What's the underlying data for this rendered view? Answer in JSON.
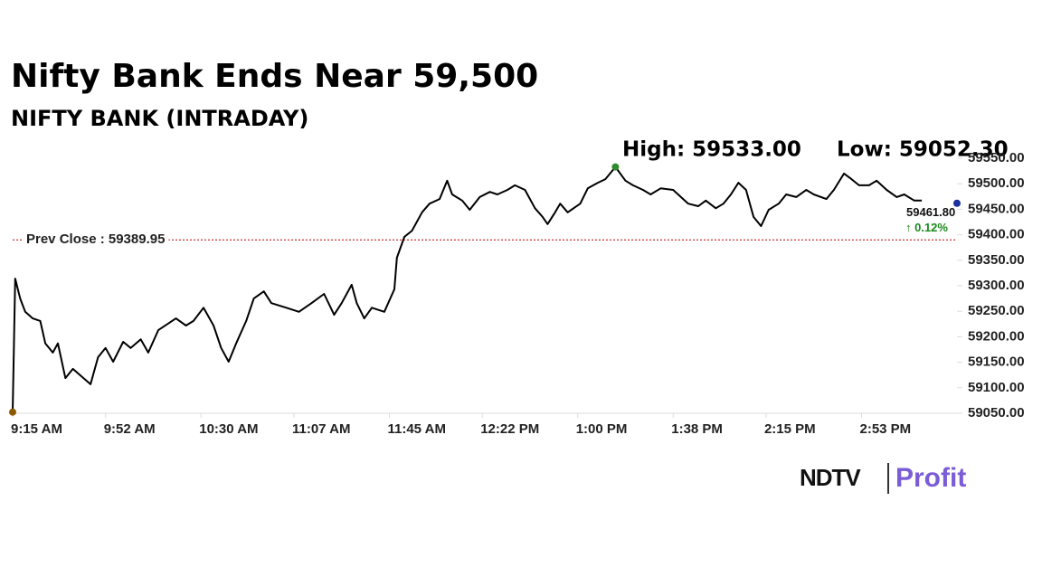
{
  "chart_data": {
    "type": "line",
    "title": "Nifty Bank Ends Near 59,500",
    "subtitle": "NIFTY BANK (INTRADAY)",
    "x": [
      555,
      556,
      558,
      560,
      563,
      566,
      568,
      571,
      573,
      576,
      579,
      582,
      586,
      589,
      592,
      595,
      599,
      602,
      606,
      609,
      613,
      617,
      620,
      624,
      627,
      631,
      635,
      638,
      641,
      644,
      648,
      651,
      655,
      658,
      664,
      669,
      674,
      679,
      683,
      686,
      690,
      692,
      695,
      698,
      703,
      707,
      708,
      711,
      714,
      718,
      721,
      725,
      728,
      730,
      734,
      737,
      741,
      745,
      748,
      752,
      755,
      759,
      763,
      766,
      768,
      771,
      773,
      776,
      781,
      784,
      788,
      791,
      795,
      799,
      802,
      806,
      809,
      813,
      818,
      824,
      828,
      831,
      835,
      838,
      841,
      844,
      847,
      850,
      853,
      856,
      860,
      863,
      867,
      871,
      874,
      879,
      882,
      886,
      889,
      892,
      896,
      899,
      903,
      907,
      910,
      914,
      917
    ],
    "values": [
      59052.3,
      59314,
      59275,
      59249,
      59236,
      59231,
      59187,
      59169,
      59187,
      59119,
      59137,
      59124,
      59107,
      59160,
      59178,
      59151,
      59190,
      59178,
      59195,
      59169,
      59213,
      59226,
      59236,
      59222,
      59231,
      59257,
      59222,
      59178,
      59151,
      59187,
      59231,
      59275,
      59289,
      59266,
      59257,
      59249,
      59266,
      59284,
      59243,
      59266,
      59302,
      59266,
      59236,
      59257,
      59249,
      59293,
      59355,
      59396,
      59408,
      59444,
      59461,
      59470,
      59506,
      59479,
      59467,
      59449,
      59474,
      59484,
      59479,
      59488,
      59497,
      59488,
      59452,
      59435,
      59421,
      59444,
      59461,
      59444,
      59461,
      59491,
      59502,
      59509,
      59533,
      59506,
      59497,
      59488,
      59479,
      59491,
      59488,
      59461,
      59456,
      59467,
      59452,
      59461,
      59479,
      59502,
      59488,
      59435,
      59417,
      59449,
      59461,
      59479,
      59474,
      59488,
      59479,
      59470,
      59488,
      59520,
      59509,
      59497,
      59497,
      59506,
      59488,
      59474,
      59479,
      59467,
      59467
    ],
    "color": "#000000",
    "xlim": [
      555,
      931
    ],
    "ylim": [
      59050,
      59550
    ],
    "xticks": [
      {
        "value": 555,
        "label": "9:15 AM"
      },
      {
        "value": 592,
        "label": "9:52 AM"
      },
      {
        "value": 630,
        "label": "10:30 AM"
      },
      {
        "value": 667,
        "label": "11:07 AM"
      },
      {
        "value": 705,
        "label": "11:45 AM"
      },
      {
        "value": 742,
        "label": "12:22 PM"
      },
      {
        "value": 780,
        "label": "1:00 PM"
      },
      {
        "value": 818,
        "label": "1:38 PM"
      },
      {
        "value": 855,
        "label": "2:15 PM"
      },
      {
        "value": 893,
        "label": "2:53 PM"
      }
    ],
    "yticks": [
      {
        "value": 59050,
        "label": "59050.00"
      },
      {
        "value": 59100,
        "label": "59100.00"
      },
      {
        "value": 59150,
        "label": "59150.00"
      },
      {
        "value": 59200,
        "label": "59200.00"
      },
      {
        "value": 59250,
        "label": "59250.00"
      },
      {
        "value": 59300,
        "label": "59300.00"
      },
      {
        "value": 59350,
        "label": "59350.00"
      },
      {
        "value": 59400,
        "label": "59400.00"
      },
      {
        "value": 59450,
        "label": "59450.00"
      },
      {
        "value": 59500,
        "label": "59500.00"
      },
      {
        "value": 59550,
        "label": "59550.00"
      }
    ],
    "grid": false,
    "high": {
      "label": "High: 59533.00",
      "value": 59533,
      "x": 795,
      "color": "#2e8b2e"
    },
    "low": {
      "label": "Low: 59052.30",
      "value": 59052.3,
      "x": 555,
      "color": "#8b5a00"
    },
    "prev_close": {
      "label": "Prev Close : 59389.95",
      "value": 59389.95,
      "color": "#c00000"
    },
    "last": {
      "value": 59461.8,
      "value_label": "59461.80",
      "x": 931,
      "change": "↑ 0.12%",
      "color": "#1a2fa0",
      "change_color": "#1a8a1a"
    }
  },
  "logo": {
    "brand": "NDTV",
    "product": "Profit"
  }
}
